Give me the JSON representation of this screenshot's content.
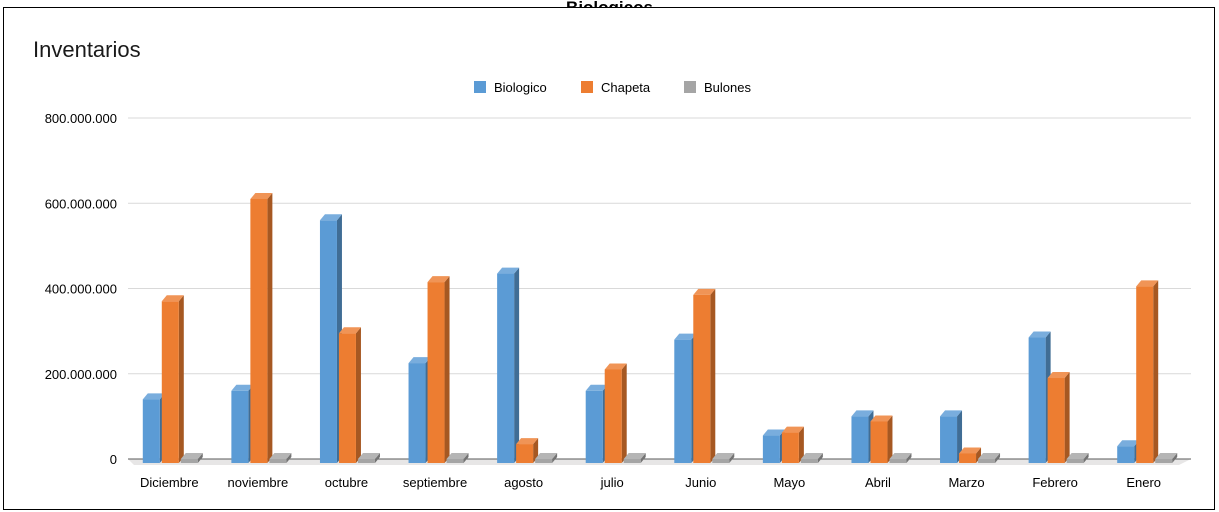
{
  "page": {
    "title": "Biologicos"
  },
  "colors": {
    "Biologico": "#5b9bd5",
    "Chapeta": "#ed7d31",
    "Bulones": "#a5a5a5",
    "grid": "#d9d9d9"
  },
  "chart_data": {
    "type": "bar",
    "title": "Inventarios",
    "xlabel": "",
    "ylabel": "",
    "ylim": [
      0,
      800000000
    ],
    "yticks": [
      0,
      200000000,
      400000000,
      600000000,
      800000000
    ],
    "ytick_labels": [
      "0",
      "200.000.000",
      "400.000.000",
      "600.000.000",
      "800.000.000"
    ],
    "grid": true,
    "legend_position": "top",
    "style": "3d-column",
    "categories": [
      "Diciembre",
      "noviembre",
      "octubre",
      "septiembre",
      "agosto",
      "julio",
      "Junio",
      "Mayo",
      "Abril",
      "Marzo",
      "Febrero",
      "Enero"
    ],
    "series": [
      {
        "name": "Biologico",
        "values": [
          140000000,
          160000000,
          560000000,
          225000000,
          435000000,
          160000000,
          280000000,
          55000000,
          100000000,
          100000000,
          285000000,
          30000000
        ]
      },
      {
        "name": "Chapeta",
        "values": [
          370000000,
          610000000,
          295000000,
          415000000,
          35000000,
          210000000,
          385000000,
          62000000,
          88000000,
          13000000,
          190000000,
          405000000
        ]
      },
      {
        "name": "Bulones",
        "values": [
          0,
          0,
          0,
          0,
          0,
          0,
          0,
          0,
          0,
          0,
          0,
          0
        ]
      }
    ]
  }
}
